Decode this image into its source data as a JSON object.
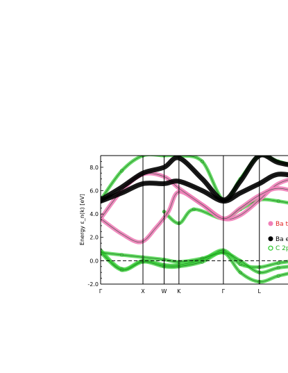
{
  "chart_data": {
    "type": "line",
    "ylabel": "Energy  ε_n(k)  [eV]",
    "ylim": [
      -2.0,
      9.0
    ],
    "yticks": [
      "8.0",
      "6.0",
      "4.0",
      "2.0",
      "0.0",
      "-2.0"
    ],
    "ytick_values": [
      8.0,
      6.0,
      4.0,
      2.0,
      0.0,
      -2.0
    ],
    "x_range": [
      0.0,
      5.2
    ],
    "high_symmetry_points": [
      {
        "label": "Γ",
        "x": 0.0
      },
      {
        "label": "X",
        "x": 1.0
      },
      {
        "label": "W",
        "x": 1.5
      },
      {
        "label": "K",
        "x": 1.85
      },
      {
        "label": "Γ",
        "x": 2.9
      },
      {
        "label": "L",
        "x": 3.75
      }
    ],
    "fermi_level": 0.0,
    "legend_placement": "right",
    "legend": [
      {
        "label": "Ba t",
        "color": "#f080b8",
        "marker": "dot"
      },
      {
        "label": "Ba e",
        "color": "#000000",
        "marker": "dot"
      },
      {
        "label": "C 2p",
        "color": "#33cc33",
        "marker": "ring"
      }
    ],
    "series": [
      {
        "character": "C 2p",
        "x": [
          0.0,
          0.5,
          1.0,
          1.5,
          1.85,
          2.4,
          2.9,
          3.3,
          3.75,
          4.2,
          4.8
        ],
        "y": [
          0.9,
          -0.7,
          0.0,
          -0.35,
          -0.35,
          0.1,
          0.9,
          -0.3,
          -0.55,
          -0.2,
          0.1
        ]
      },
      {
        "character": "C 2p",
        "x": [
          0.0,
          0.5,
          1.0,
          1.5,
          1.85,
          2.4,
          2.9,
          3.3,
          3.75,
          4.2,
          4.8
        ],
        "y": [
          0.7,
          -0.8,
          -0.1,
          -0.5,
          -0.5,
          -0.1,
          0.7,
          -1.0,
          -1.8,
          -1.3,
          -0.8
        ]
      },
      {
        "character": "C 2p",
        "x": [
          0.0,
          0.5,
          1.0,
          1.5,
          1.85,
          2.4,
          2.9,
          3.3,
          3.75,
          4.2,
          4.8
        ],
        "y": [
          0.7,
          0.5,
          0.3,
          0.1,
          -0.1,
          0.2,
          0.7,
          0.0,
          -1.0,
          -0.6,
          -0.4
        ]
      },
      {
        "character": "Ba t",
        "x": [
          0.0,
          0.5,
          0.95,
          1.3,
          1.6,
          1.85,
          2.4,
          2.9,
          3.3,
          3.75,
          4.2,
          4.8
        ],
        "y": [
          3.6,
          2.3,
          1.6,
          2.8,
          4.2,
          5.9,
          4.8,
          3.6,
          3.9,
          5.2,
          6.6,
          7.3
        ]
      },
      {
        "character": "Ba t",
        "x": [
          0.0,
          0.5,
          1.0,
          1.5,
          1.85,
          2.4,
          2.9,
          3.3,
          3.75,
          4.2,
          4.8
        ],
        "y": [
          3.6,
          6.0,
          7.4,
          7.2,
          6.2,
          4.8,
          3.6,
          4.5,
          5.6,
          6.2,
          5.7
        ]
      },
      {
        "character": "Ba e",
        "x": [
          0.0,
          0.5,
          1.0,
          1.5,
          1.85,
          2.4,
          2.9,
          3.3,
          3.75,
          4.2,
          4.8
        ],
        "y": [
          5.1,
          5.8,
          6.6,
          6.6,
          6.8,
          6.0,
          5.1,
          5.8,
          6.6,
          7.4,
          7.1
        ]
      },
      {
        "character": "Ba e",
        "x": [
          0.0,
          0.5,
          1.0,
          1.5,
          1.85,
          2.4,
          2.9,
          3.3,
          3.75,
          4.2,
          4.8
        ],
        "y": [
          5.2,
          6.3,
          7.5,
          8.0,
          8.8,
          7.0,
          5.2,
          6.8,
          9.0,
          8.4,
          8.0
        ]
      },
      {
        "character": "C 2p",
        "x": [
          0.0,
          0.5,
          1.0,
          1.5,
          1.85,
          2.4,
          2.9,
          3.3,
          3.75,
          4.2,
          4.8
        ],
        "y": [
          5.2,
          7.7,
          9.0,
          9.0,
          9.0,
          8.5,
          5.2,
          7.0,
          9.0,
          8.5,
          7.9
        ]
      },
      {
        "character": "C 2p",
        "x": [
          1.5,
          1.85,
          2.2,
          2.9,
          3.3,
          3.75,
          4.2,
          4.8
        ],
        "y": [
          4.2,
          3.2,
          4.4,
          3.6,
          4.4,
          5.2,
          5.1,
          4.7
        ]
      }
    ]
  }
}
